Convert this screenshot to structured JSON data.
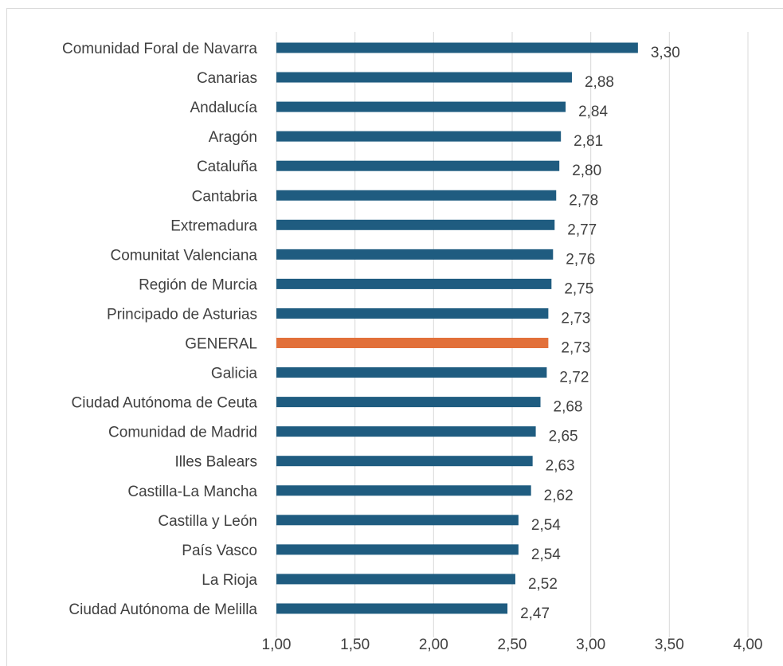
{
  "chart_data": {
    "type": "bar",
    "orientation": "horizontal",
    "categories": [
      "Comunidad Foral de Navarra",
      "Canarias",
      "Andalucía",
      "Aragón",
      "Cataluña",
      "Cantabria",
      "Extremadura",
      "Comunitat Valenciana",
      "Región de Murcia",
      "Principado de Asturias",
      "GENERAL",
      "Galicia",
      "Ciudad Autónoma de Ceuta",
      "Comunidad de Madrid",
      "Illes Balears",
      "Castilla-La Mancha",
      "Castilla y León",
      "País Vasco",
      "La Rioja",
      "Ciudad Autónoma de Melilla"
    ],
    "values": [
      3.3,
      2.88,
      2.84,
      2.81,
      2.8,
      2.78,
      2.77,
      2.76,
      2.75,
      2.73,
      2.73,
      2.72,
      2.68,
      2.65,
      2.63,
      2.62,
      2.54,
      2.54,
      2.52,
      2.47
    ],
    "value_labels": [
      "3,30",
      "2,88",
      "2,84",
      "2,81",
      "2,80",
      "2,78",
      "2,77",
      "2,76",
      "2,75",
      "2,73",
      "2,73",
      "2,72",
      "2,68",
      "2,65",
      "2,63",
      "2,62",
      "2,54",
      "2,54",
      "2,52",
      "2,47"
    ],
    "highlight_category": "GENERAL",
    "xlim": [
      1.0,
      4.0
    ],
    "x_ticks": [
      1.0,
      1.5,
      2.0,
      2.5,
      3.0,
      3.5,
      4.0
    ],
    "x_tick_labels": [
      "1,00",
      "1,50",
      "2,00",
      "2,50",
      "3,00",
      "3,50",
      "4,00"
    ],
    "title": "",
    "xlabel": "",
    "ylabel": "",
    "grid": "vertical",
    "legend": "none",
    "colors": {
      "bar": "#1f5c80",
      "highlight": "#e2703a",
      "grid": "#d9d9d9",
      "text": "#404040"
    }
  }
}
